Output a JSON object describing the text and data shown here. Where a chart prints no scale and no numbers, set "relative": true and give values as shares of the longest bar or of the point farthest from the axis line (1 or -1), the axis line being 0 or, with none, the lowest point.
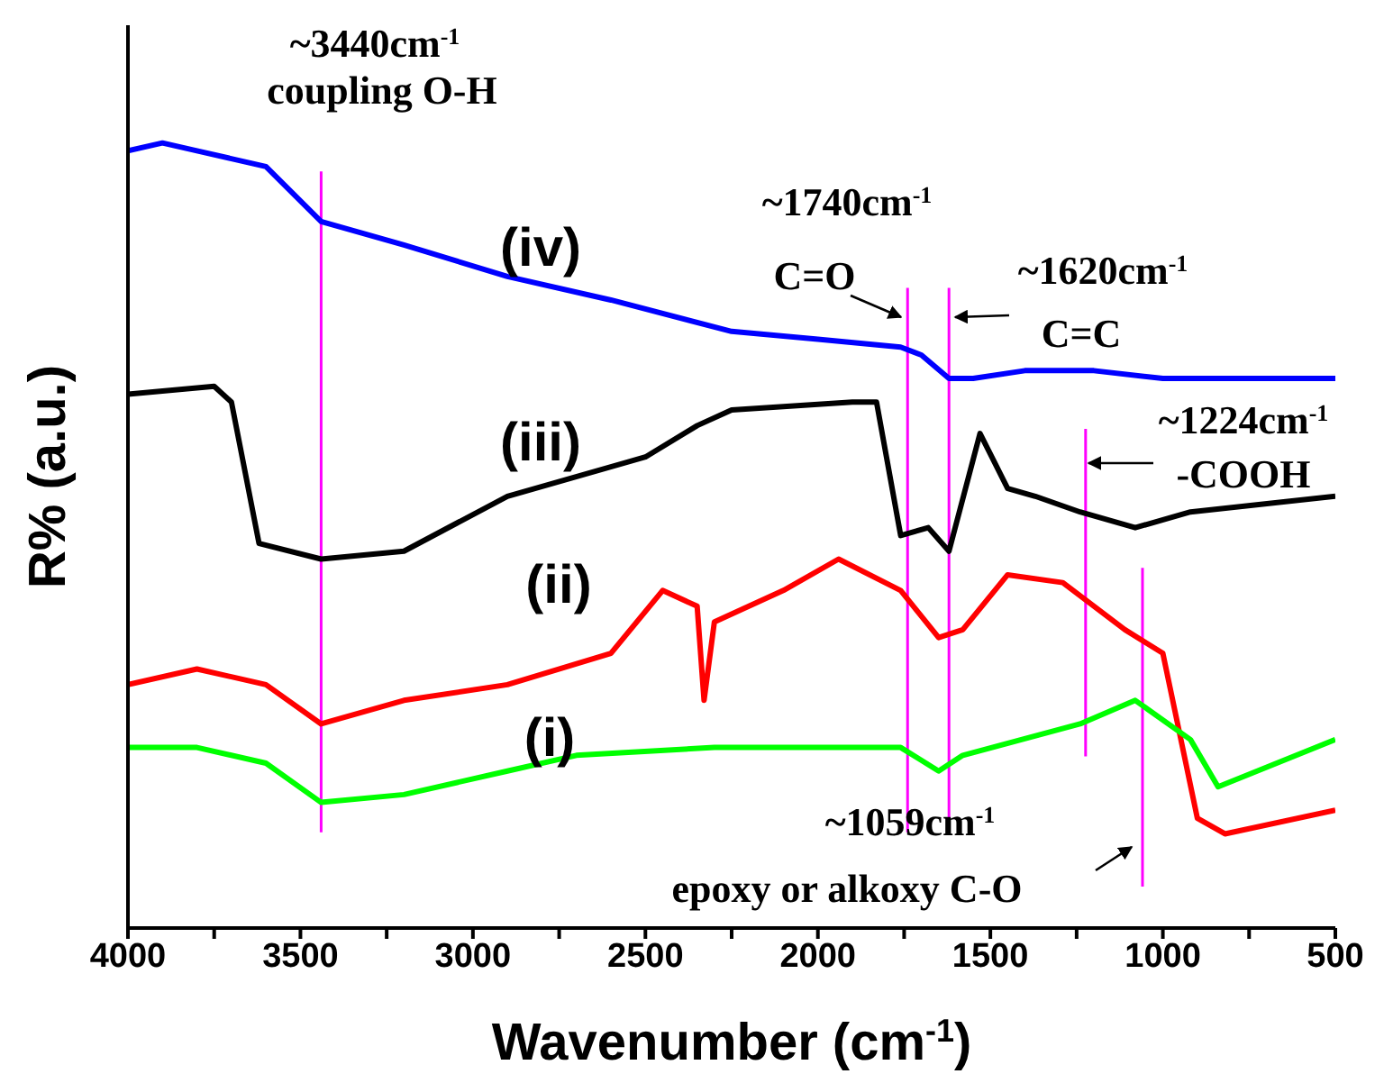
{
  "chart_data": {
    "type": "line",
    "relative": true,
    "xlabel": "Wavenumber (cm$^{-1}$)",
    "ylabel": "R% (a.u.)",
    "xlim": [
      4000,
      500
    ],
    "xticks": [
      4000,
      {
        "value": 3750,
        "label": null
      },
      3500,
      {
        "value": 3250,
        "label": null
      },
      3000,
      {
        "value": 2750,
        "label": null
      },
      2500,
      {
        "value": 2250,
        "label": null
      },
      2000,
      {
        "value": 1750,
        "label": null
      },
      1500,
      {
        "value": 1250,
        "label": null
      },
      1000,
      {
        "value": 750,
        "label": null
      },
      500
    ],
    "tick_labels": "x",
    "marker": "none",
    "line_style": "solid",
    "series": [
      {
        "name": "(iv)",
        "color": "#0000ff",
        "x": [
          4000,
          3900,
          3800,
          3600,
          3440,
          3200,
          2900,
          2600,
          2250,
          2000,
          1760,
          1700,
          1620,
          1550,
          1400,
          1200,
          1000,
          800,
          500
        ],
        "values": [
          0.99,
          1.0,
          0.99,
          0.97,
          0.9,
          0.87,
          0.83,
          0.8,
          0.76,
          0.75,
          0.74,
          0.73,
          0.7,
          0.7,
          0.71,
          0.71,
          0.7,
          0.7,
          0.7
        ]
      },
      {
        "name": "(iii)",
        "color": "#000000",
        "x": [
          4000,
          3750,
          3700,
          3620,
          3440,
          3200,
          2900,
          2500,
          2350,
          2250,
          1900,
          1830,
          1760,
          1680,
          1620,
          1530,
          1450,
          1370,
          1240,
          1080,
          920,
          500
        ],
        "values": [
          0.68,
          0.69,
          0.67,
          0.49,
          0.47,
          0.48,
          0.55,
          0.6,
          0.64,
          0.66,
          0.67,
          0.67,
          0.5,
          0.51,
          0.48,
          0.63,
          0.56,
          0.55,
          0.53,
          0.51,
          0.53,
          0.55
        ]
      },
      {
        "name": "(ii)",
        "color": "#ff0000",
        "x": [
          4000,
          3800,
          3600,
          3440,
          3200,
          2900,
          2600,
          2450,
          2350,
          2330,
          2300,
          2100,
          1940,
          1760,
          1650,
          1580,
          1450,
          1290,
          1110,
          1000,
          900,
          820,
          500
        ],
        "values": [
          0.31,
          0.33,
          0.31,
          0.26,
          0.29,
          0.31,
          0.35,
          0.43,
          0.41,
          0.29,
          0.39,
          0.43,
          0.47,
          0.43,
          0.37,
          0.38,
          0.45,
          0.44,
          0.38,
          0.35,
          0.14,
          0.12,
          0.15
        ]
      },
      {
        "name": "(i)",
        "color": "#00ff00",
        "x": [
          4000,
          3800,
          3600,
          3440,
          3200,
          2900,
          2700,
          2300,
          1760,
          1650,
          1580,
          1240,
          1080,
          920,
          840,
          500
        ],
        "values": [
          0.23,
          0.23,
          0.21,
          0.16,
          0.17,
          0.2,
          0.22,
          0.23,
          0.23,
          0.2,
          0.22,
          0.26,
          0.29,
          0.24,
          0.18,
          0.24
        ]
      }
    ],
    "ref_lines": [
      {
        "axis": "x",
        "value": 3440,
        "color": "#ff00ff"
      },
      {
        "axis": "x",
        "value": 1740,
        "color": "#ff00ff"
      },
      {
        "axis": "x",
        "value": 1620,
        "color": "#ff00ff"
      },
      {
        "axis": "x",
        "value": 1224,
        "color": "#ff00ff"
      },
      {
        "axis": "x",
        "value": 1059,
        "color": "#ff00ff"
      }
    ],
    "annotations": [
      "~3440cm$^{-1}$",
      "coupling O-H",
      "~1740cm$^{-1}$",
      "C=O",
      "~1620cm$^{-1}$",
      "C=C",
      "~1224cm$^{-1}$",
      "-COOH",
      "~1059cm$^{-1}$",
      "epoxy or alkoxy C-O"
    ]
  }
}
